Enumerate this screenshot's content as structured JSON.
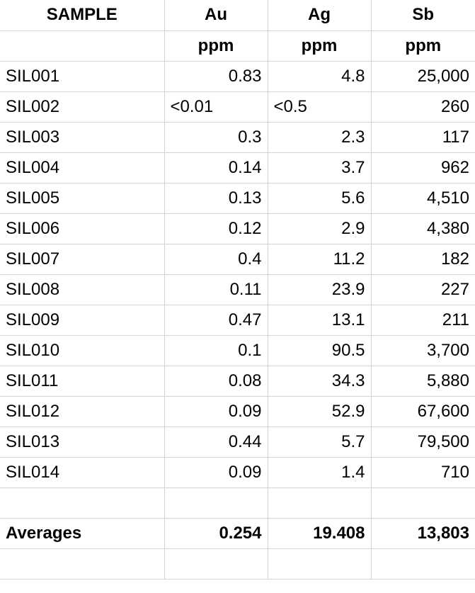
{
  "table": {
    "header": [
      "SAMPLE",
      "Au",
      "Ag",
      "Sb"
    ],
    "units": [
      "ppm",
      "ppm",
      "ppm"
    ],
    "rows": [
      [
        "SIL001",
        "0.83",
        "4.8",
        "25,000"
      ],
      [
        "SIL002",
        "<0.01",
        "<0.5",
        "260"
      ],
      [
        "SIL003",
        "0.3",
        "2.3",
        "117"
      ],
      [
        "SIL004",
        "0.14",
        "3.7",
        "962"
      ],
      [
        "SIL005",
        "0.13",
        "5.6",
        "4,510"
      ],
      [
        "SIL006",
        "0.12",
        "2.9",
        "4,380"
      ],
      [
        "SIL007",
        "0.4",
        "11.2",
        "182"
      ],
      [
        "SIL008",
        "0.11",
        "23.9",
        "227"
      ],
      [
        "SIL009",
        "0.47",
        "13.1",
        "211"
      ],
      [
        "SIL010",
        "0.1",
        "90.5",
        "3,700"
      ],
      [
        "SIL011",
        "0.08",
        "34.3",
        "5,880"
      ],
      [
        "SIL012",
        "0.09",
        "52.9",
        "67,600"
      ],
      [
        "SIL013",
        "0.44",
        "5.7",
        "79,500"
      ],
      [
        "SIL014",
        "0.09",
        "1.4",
        "710"
      ]
    ],
    "averages": [
      "Averages",
      "0.254",
      "19.408",
      "13,803"
    ]
  }
}
